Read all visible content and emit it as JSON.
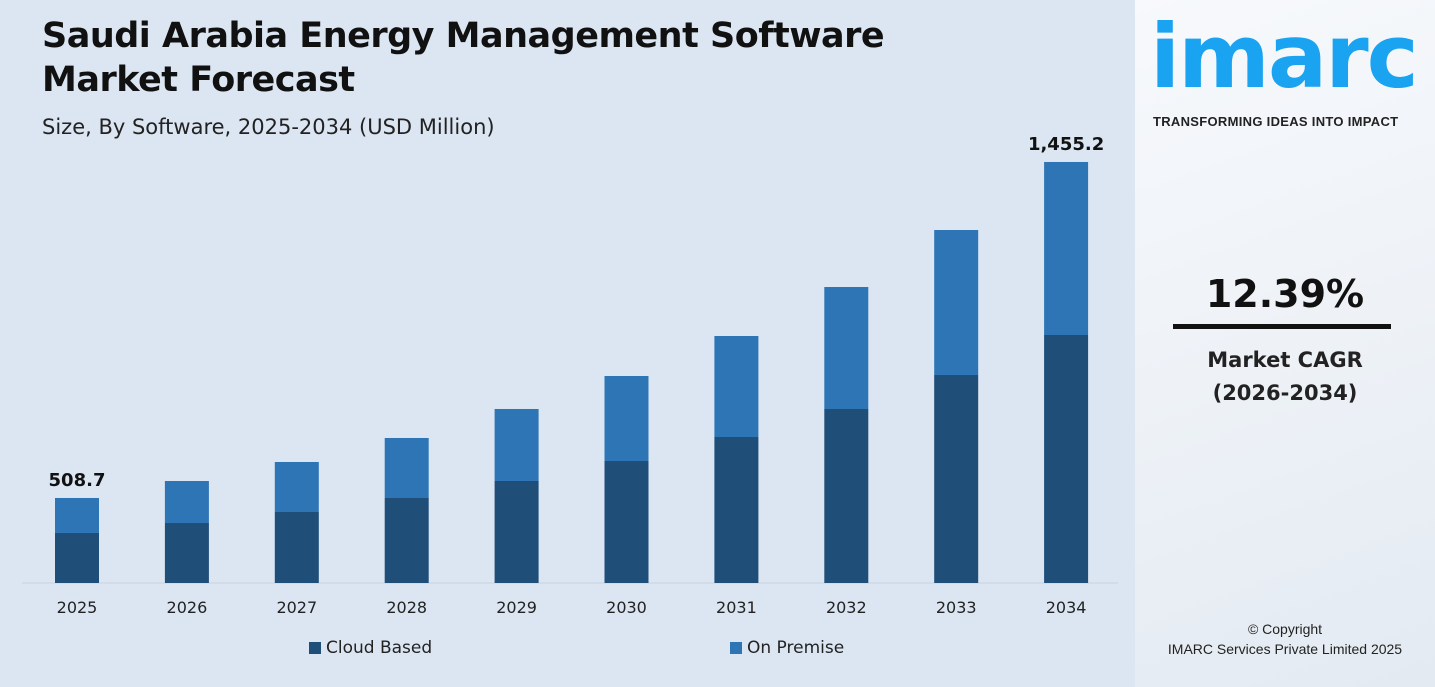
{
  "header": {
    "title": "Saudi Arabia Energy Management Software Market Forecast",
    "subtitle": "Size, By Software, 2025-2034 (USD Million)"
  },
  "chart_data": {
    "type": "bar",
    "stacked": true,
    "title": "Saudi Arabia Energy Management Software Market Forecast",
    "subtitle": "Size, By Software, 2025-2034 (USD Million)",
    "categories": [
      "2025",
      "2026",
      "2027",
      "2028",
      "2029",
      "2030",
      "2031",
      "2032",
      "2033",
      "2034"
    ],
    "series": [
      {
        "name": "Cloud Based",
        "color": "#1f4e79",
        "values": [
          299.3,
          327.3,
          358.0,
          397.3,
          445.2,
          502.3,
          570.4,
          648.4,
          744.6,
          857.2
        ]
      },
      {
        "name": "On Premise",
        "color": "#2e75b6",
        "values": [
          209.4,
          229.2,
          252.1,
          280.4,
          314.2,
          350.0,
          394.6,
          454.6,
          519.0,
          598.0
        ]
      }
    ],
    "data_labels": [
      {
        "category": "2025",
        "text": "508.7"
      },
      {
        "category": "2034",
        "text": "1,455.2"
      }
    ],
    "grid": false,
    "legend": "bottom"
  },
  "sidebar": {
    "logo": "imarc",
    "tagline": "TRANSFORMING IDEAS INTO IMPACT",
    "cagr_value": "12.39%",
    "cagr_label": "Market CAGR",
    "cagr_period": "(2026-2034)",
    "copyright": "© Copyright",
    "company": "IMARC Services Private Limited 2025",
    "logo_color": "#1aa3f0"
  }
}
